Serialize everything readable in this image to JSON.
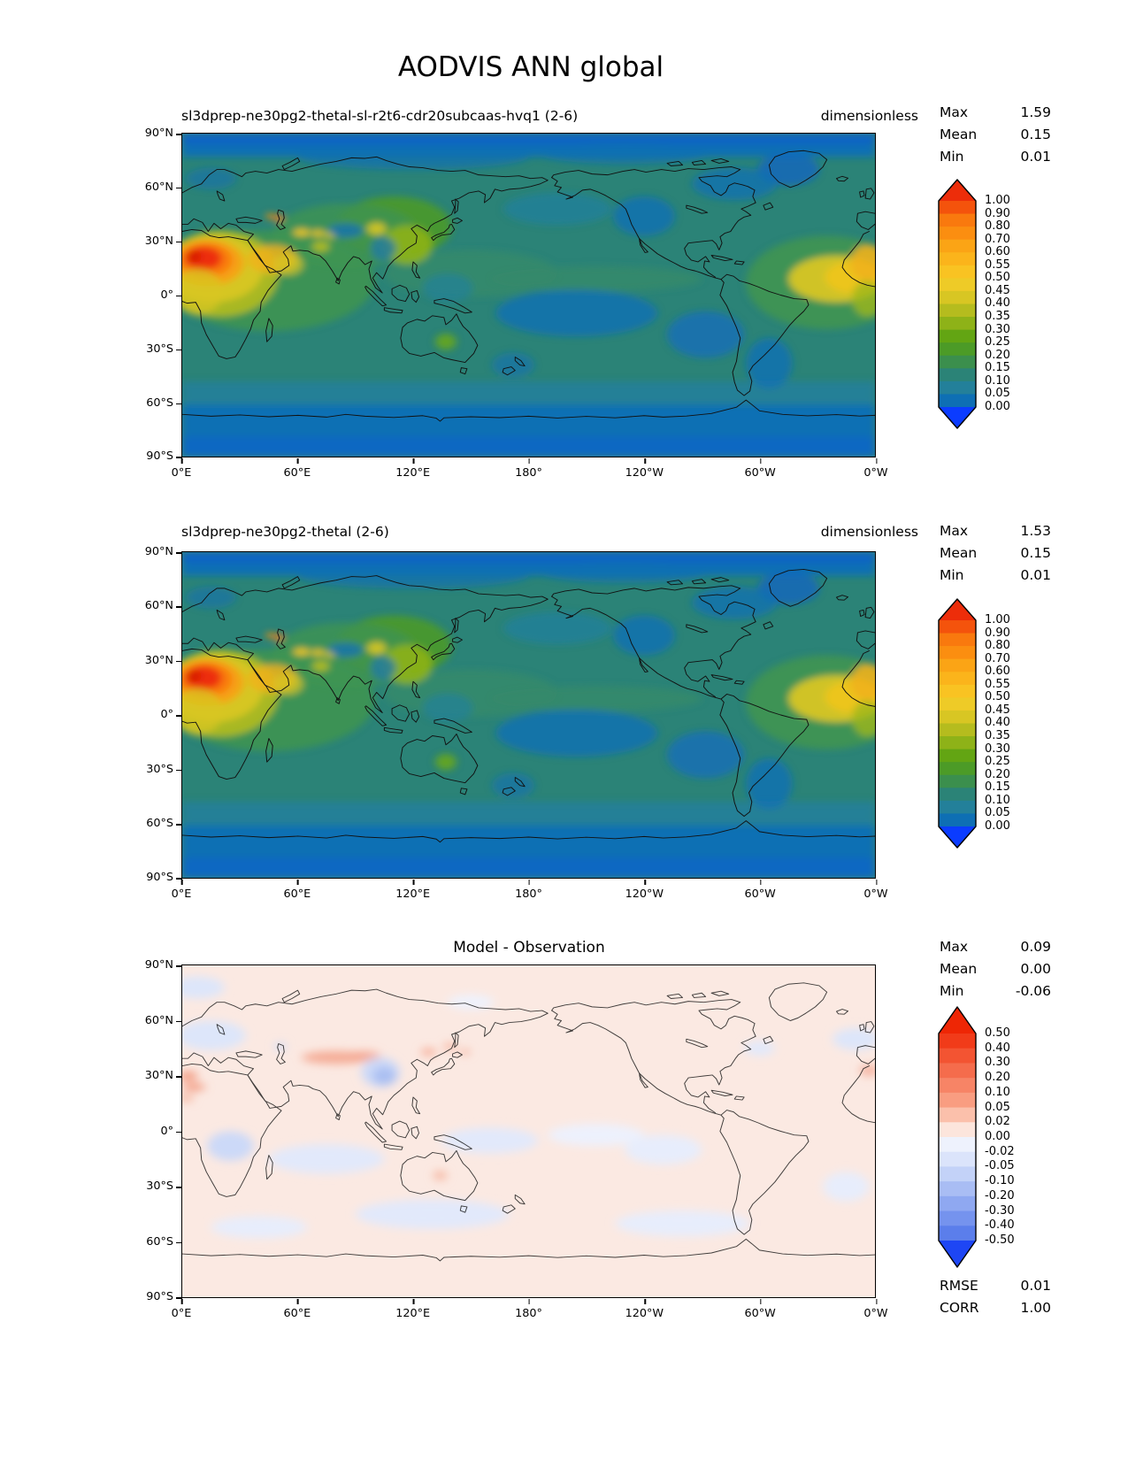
{
  "figure": {
    "title": "AODVIS ANN global"
  },
  "axes": {
    "lon_ticks": [
      "0°E",
      "60°E",
      "120°E",
      "180°",
      "120°W",
      "60°W",
      "0°W"
    ],
    "lat_ticks": [
      "90°N",
      "60°N",
      "30°N",
      "0°",
      "30°S",
      "60°S",
      "90°S"
    ]
  },
  "palette": {
    "ocean_teal": "#2b8377",
    "diff_background": "#fbe9e2",
    "coastline": "#111111"
  },
  "panels": [
    {
      "title": "sl3dprep-ne30pg2-thetal-sl-r2t6-cdr20subcaas-hvq1 (2-6)",
      "units": "dimensionless",
      "stats": {
        "max_label": "Max",
        "max": "1.59",
        "mean_label": "Mean",
        "mean": "0.15",
        "min_label": "Min",
        "min": "0.01"
      },
      "colorbar": {
        "ticks": [
          "1.00",
          "0.90",
          "0.80",
          "0.70",
          "0.60",
          "0.55",
          "0.50",
          "0.45",
          "0.40",
          "0.35",
          "0.30",
          "0.25",
          "0.20",
          "0.15",
          "0.10",
          "0.05",
          "0.00"
        ],
        "segments": [
          "#f4530c",
          "#f9790e",
          "#fb8e10",
          "#fba415",
          "#fbb41b",
          "#f9c322",
          "#eecb27",
          "#d8c623",
          "#b5bc1e",
          "#8eb218",
          "#63a513",
          "#4c9b27",
          "#3b8f4d",
          "#2b8377",
          "#23809a",
          "#0e6fb4"
        ],
        "over": "#ed2d0a",
        "under": "#0b3cff"
      }
    },
    {
      "title": "sl3dprep-ne30pg2-thetal (2-6)",
      "units": "dimensionless",
      "stats": {
        "max_label": "Max",
        "max": "1.53",
        "mean_label": "Mean",
        "mean": "0.15",
        "min_label": "Min",
        "min": "0.01"
      },
      "colorbar": {
        "ticks": [
          "1.00",
          "0.90",
          "0.80",
          "0.70",
          "0.60",
          "0.55",
          "0.50",
          "0.45",
          "0.40",
          "0.35",
          "0.30",
          "0.25",
          "0.20",
          "0.15",
          "0.10",
          "0.05",
          "0.00"
        ],
        "segments": [
          "#f4530c",
          "#f9790e",
          "#fb8e10",
          "#fba415",
          "#fbb41b",
          "#f9c322",
          "#eecb27",
          "#d8c623",
          "#b5bc1e",
          "#8eb218",
          "#63a513",
          "#4c9b27",
          "#3b8f4d",
          "#2b8377",
          "#23809a",
          "#0e6fb4"
        ],
        "over": "#ed2d0a",
        "under": "#0b3cff"
      }
    },
    {
      "title": "Model - Observation",
      "stats": {
        "max_label": "Max",
        "max": "0.09",
        "mean_label": "Mean",
        "mean": "0.00",
        "min_label": "Min",
        "min": "-0.06"
      },
      "extra_stats": {
        "rmse_label": "RMSE",
        "rmse": "0.01",
        "corr_label": "CORR",
        "corr": "1.00"
      },
      "colorbar": {
        "ticks": [
          "0.50",
          "0.40",
          "0.30",
          "0.20",
          "0.10",
          "0.05",
          "0.02",
          "0.00",
          "-0.02",
          "-0.05",
          "-0.10",
          "-0.20",
          "-0.30",
          "-0.40",
          "-0.50"
        ],
        "segments": [
          "#f13b19",
          "#f35432",
          "#f56c4c",
          "#f78466",
          "#f99d81",
          "#fbc0ab",
          "#fce5dc",
          "#eef2fd",
          "#dbe4fb",
          "#c3d2f8",
          "#a9bdf4",
          "#8fa8f1",
          "#7593ee",
          "#5b7eeb"
        ],
        "over": "#ee2605",
        "under": "#1e46f4"
      }
    }
  ],
  "chart_data": [
    {
      "type": "heatmap",
      "subtype": "filled-contour-global-map",
      "title": "sl3dprep-ne30pg2-thetal-sl-r2t6-cdr20subcaas-hvq1 (2-6)",
      "units": "dimensionless",
      "projection": "equirectangular",
      "lon_range_deg_east": [
        0,
        360
      ],
      "lat_range": [
        -90,
        90
      ],
      "contour_levels": [
        0.0,
        0.05,
        0.1,
        0.15,
        0.2,
        0.25,
        0.3,
        0.35,
        0.4,
        0.45,
        0.5,
        0.55,
        0.6,
        0.7,
        0.8,
        0.9,
        1.0
      ],
      "stats": {
        "max": 1.59,
        "mean": 0.15,
        "min": 0.01
      },
      "high_value_regions": [
        "Sahara / West Africa (AOD > 1.0, red core near 0-25E, 10-25N)",
        "Arabian Peninsula (~0.5)",
        "Central Asia dust spots (~0.5-0.6)",
        "East China (~0.35-0.5)",
        "Tropical Atlantic dust outflow at 0-30W (~0.4-0.5)"
      ],
      "low_value_regions": [
        "Arctic and Southern Ocean (< 0.05)",
        "Central South Pacific (~0.05)",
        "SE Pacific off Chile (~0.05)",
        "Western North America (~0.05)",
        "Tibet/Sichuan (~0.05)"
      ]
    },
    {
      "type": "heatmap",
      "subtype": "filled-contour-global-map",
      "title": "sl3dprep-ne30pg2-thetal (2-6)",
      "units": "dimensionless",
      "projection": "equirectangular",
      "lon_range_deg_east": [
        0,
        360
      ],
      "lat_range": [
        -90,
        90
      ],
      "contour_levels": [
        0.0,
        0.05,
        0.1,
        0.15,
        0.2,
        0.25,
        0.3,
        0.35,
        0.4,
        0.45,
        0.5,
        0.55,
        0.6,
        0.7,
        0.8,
        0.9,
        1.0
      ],
      "stats": {
        "max": 1.53,
        "mean": 0.15,
        "min": 0.01
      },
      "high_value_regions": [
        "Sahara / West Africa (AOD > 1.0)",
        "Arabian Peninsula",
        "Central Asia",
        "East China",
        "Tropical Atlantic dust outflow"
      ],
      "low_value_regions": [
        "Polar oceans",
        "Remote Pacific",
        "High terrain Asia"
      ]
    },
    {
      "type": "heatmap",
      "subtype": "difference-map",
      "title": "Model - Observation",
      "projection": "equirectangular",
      "lon_range_deg_east": [
        0,
        360
      ],
      "lat_range": [
        -90,
        90
      ],
      "contour_levels": [
        -0.5,
        -0.4,
        -0.3,
        -0.2,
        -0.1,
        -0.05,
        -0.02,
        0.0,
        0.02,
        0.05,
        0.1,
        0.2,
        0.3,
        0.4,
        0.5
      ],
      "stats": {
        "max": 0.09,
        "mean": 0.0,
        "min": -0.06,
        "rmse": 0.01,
        "corr": 1.0
      },
      "pattern": [
        "Slightly positive (0-0.02) nearly everywhere (pale pink)",
        "Weak positive streaks over Central Asia, Sahara edge, Japan/Korea, central Australia",
        "Weak negative (blue) over SE China/Sichuan, Europe, central Africa, Indian Ocean, Southern Ocean bands"
      ]
    }
  ]
}
